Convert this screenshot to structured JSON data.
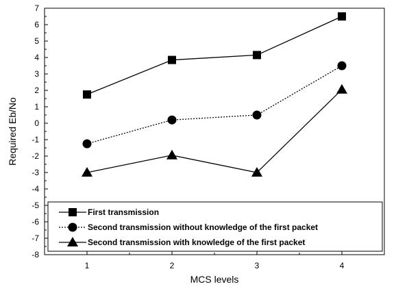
{
  "chart_data": {
    "type": "line",
    "title": "",
    "xlabel": "MCS levels",
    "ylabel": "Required Eb/No",
    "x": [
      1,
      2,
      3,
      4
    ],
    "xticks": [
      "1",
      "2",
      "3",
      "4"
    ],
    "xlim": [
      0.5,
      4.5
    ],
    "ylim": [
      -8,
      7
    ],
    "yticks": [
      "7",
      "6",
      "5",
      "4",
      "3",
      "2",
      "1",
      "0",
      "-1",
      "-2",
      "-3",
      "-4",
      "-5",
      "-6",
      "-7",
      "-8"
    ],
    "grid": false,
    "legend_position": "bottom",
    "series": [
      {
        "name": "First transmission",
        "values": [
          1.75,
          3.85,
          4.15,
          6.5
        ],
        "marker": "square",
        "line_style": "solid",
        "color": "#000000"
      },
      {
        "name": "Second transmission without knowledge of the first packet",
        "values": [
          -1.25,
          0.2,
          0.5,
          3.5
        ],
        "marker": "circle",
        "line_style": "dotted",
        "color": "#000000"
      },
      {
        "name": "Second transmission with knowledge of the first packet",
        "values": [
          -3.0,
          -1.95,
          -3.0,
          2.05
        ],
        "marker": "triangle",
        "line_style": "solid",
        "color": "#000000"
      }
    ]
  }
}
